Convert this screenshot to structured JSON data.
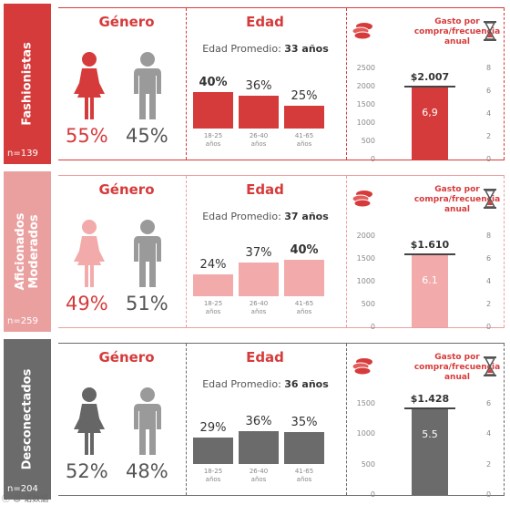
{
  "common": {
    "genero_title": "Género",
    "edad_title": "Edad",
    "edad_promedio_label": "Edad Promedio:",
    "gasto_title_line1": "Gasto por",
    "gasto_title_line2": "compra/frecuencia",
    "gasto_title_line3": "anual",
    "age_categories": [
      [
        "18-25",
        "años"
      ],
      [
        "26-40",
        "años"
      ],
      [
        "41-65",
        "años"
      ]
    ]
  },
  "colors": {
    "fashionistas_accent": "#d63b3b",
    "fashionistas_side": "#d63b3b",
    "moderados_accent": "#d63b3b",
    "moderados_side": "#eba0a0",
    "moderados_bar": "#f2aaaa",
    "desconectados_accent": "#d63b3b",
    "desconectados_side": "#6b6b6b",
    "desconectados_bar": "#6b6b6b"
  },
  "chart_data": [
    {
      "type": "bar",
      "segment": "Fashionistas",
      "n": "n=139",
      "genero": {
        "female_pct": "55%",
        "male_pct": "45%",
        "female": 55,
        "male": 45
      },
      "edad_promedio": "33 años",
      "categories": [
        "18-25 años",
        "26-40 años",
        "41-65 años"
      ],
      "values": [
        40,
        36,
        25
      ],
      "value_labels": [
        "40%",
        "36%",
        "25%"
      ],
      "highlight_index": 0,
      "gasto": {
        "amount": 2007,
        "amount_label": "$2.007",
        "frecuencia": 6.9,
        "frecuencia_label": "6,9"
      },
      "left_axis": {
        "ticks": [
          "2500",
          "2000",
          "1500",
          "1000",
          "500",
          "0"
        ],
        "max": 2500
      },
      "right_axis": {
        "ticks": [
          "8",
          "6",
          "4",
          "2",
          "0"
        ],
        "max": 8
      }
    },
    {
      "type": "bar",
      "segment": "Aficionados Moderados",
      "segment_lines": [
        "Aficionados",
        "Moderados"
      ],
      "n": "n=259",
      "genero": {
        "female_pct": "49%",
        "male_pct": "51%",
        "female": 49,
        "male": 51
      },
      "edad_promedio": "37 años",
      "categories": [
        "18-25 años",
        "26-40 años",
        "41-65 años"
      ],
      "values": [
        24,
        37,
        40
      ],
      "value_labels": [
        "24%",
        "37%",
        "40%"
      ],
      "highlight_index": 2,
      "gasto": {
        "amount": 1610,
        "amount_label": "$1.610",
        "frecuencia": 6.1,
        "frecuencia_label": "6.1"
      },
      "left_axis": {
        "ticks": [
          "2000",
          "1500",
          "1000",
          "500",
          "0"
        ],
        "max": 2000
      },
      "right_axis": {
        "ticks": [
          "8",
          "6",
          "4",
          "2",
          "0"
        ],
        "max": 8
      }
    },
    {
      "type": "bar",
      "segment": "Desconectados",
      "n": "n=204",
      "genero": {
        "female_pct": "52%",
        "male_pct": "48%",
        "female": 52,
        "male": 48
      },
      "edad_promedio": "36 años",
      "categories": [
        "18-25 años",
        "26-40 años",
        "41-65 años"
      ],
      "values": [
        29,
        36,
        35
      ],
      "value_labels": [
        "29%",
        "36%",
        "35%"
      ],
      "highlight_index": -1,
      "gasto": {
        "amount": 1428,
        "amount_label": "$1.428",
        "frecuencia": 5.5,
        "frecuencia_label": "5.5"
      },
      "left_axis": {
        "ticks": [
          "1500",
          "1000",
          "500",
          "0"
        ],
        "max": 1500
      },
      "right_axis": {
        "ticks": [
          "6",
          "4",
          "2",
          "0"
        ],
        "max": 6
      }
    }
  ],
  "watermark": "ⓒ ☺ 诺数据"
}
